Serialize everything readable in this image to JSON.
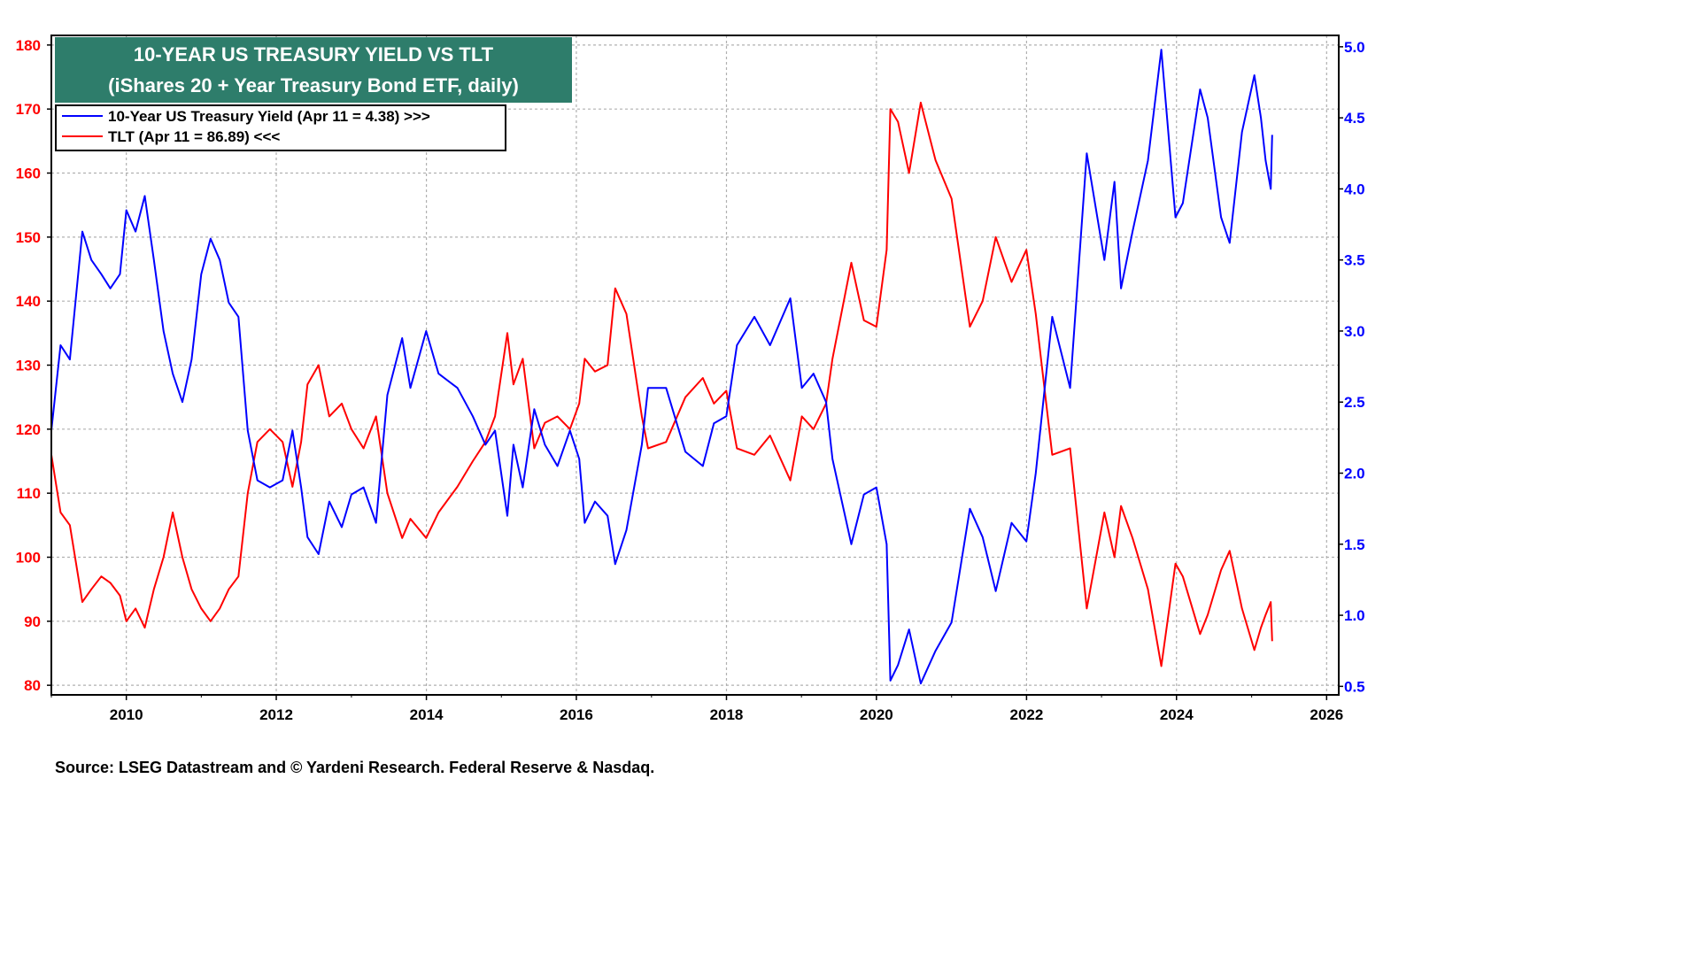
{
  "colors": {
    "tlt_series": "#ff0000",
    "yield_series": "#0000ff",
    "title_box": "#2e7d6b",
    "title_text": "#ffffff",
    "grid": "#b0b0b0",
    "frame": "#000000"
  },
  "chart_data": {
    "type": "line",
    "title": "10-YEAR US TREASURY YIELD VS TLT",
    "subtitle": "(iShares 20 + Year Treasury Bond ETF, daily)",
    "source": "Source: LSEG Datastream and © Yardeni Research. Federal Reserve & Nasdaq.",
    "grid": true,
    "legend_position": "top-left",
    "x_axis": {
      "type": "date",
      "range": [
        "2009-01-01",
        "2026-03-01"
      ],
      "tick_labels": [
        "2010",
        "2012",
        "2014",
        "2016",
        "2018",
        "2020",
        "2022",
        "2024",
        "2026"
      ]
    },
    "y_left": {
      "range": [
        78.5,
        181.5
      ],
      "ticks": [
        80,
        90,
        100,
        110,
        120,
        130,
        140,
        150,
        160,
        170,
        180
      ],
      "tick_labels": [
        "80",
        "90",
        "100",
        "110",
        "120",
        "130",
        "140",
        "150",
        "160",
        "170",
        "180"
      ]
    },
    "y_right": {
      "range": [
        0.44,
        5.08
      ],
      "ticks": [
        0.5,
        1.0,
        1.5,
        2.0,
        2.5,
        3.0,
        3.5,
        4.0,
        4.5,
        5.0
      ],
      "tick_labels": [
        "0.5",
        "1.0",
        "1.5",
        "2.0",
        "2.5",
        "3.0",
        "3.5",
        "4.0",
        "4.5",
        "5.0"
      ]
    },
    "series": [
      {
        "name": "10-Year US Treasury Yield (Apr 11 = 4.38) >>>",
        "axis": "right",
        "color": "#0000ff",
        "points": [
          [
            "2009-01-01",
            2.3
          ],
          [
            "2009-02-15",
            2.9
          ],
          [
            "2009-04-01",
            2.8
          ],
          [
            "2009-06-01",
            3.7
          ],
          [
            "2009-07-15",
            3.5
          ],
          [
            "2009-09-01",
            3.4
          ],
          [
            "2009-10-15",
            3.3
          ],
          [
            "2009-12-01",
            3.4
          ],
          [
            "2010-01-01",
            3.85
          ],
          [
            "2010-02-15",
            3.7
          ],
          [
            "2010-04-01",
            3.95
          ],
          [
            "2010-05-15",
            3.5
          ],
          [
            "2010-07-01",
            3.0
          ],
          [
            "2010-08-15",
            2.7
          ],
          [
            "2010-10-01",
            2.5
          ],
          [
            "2010-11-15",
            2.8
          ],
          [
            "2011-01-01",
            3.4
          ],
          [
            "2011-02-15",
            3.65
          ],
          [
            "2011-04-01",
            3.5
          ],
          [
            "2011-05-15",
            3.2
          ],
          [
            "2011-07-01",
            3.1
          ],
          [
            "2011-08-15",
            2.3
          ],
          [
            "2011-10-01",
            1.95
          ],
          [
            "2011-12-01",
            1.9
          ],
          [
            "2012-02-01",
            1.95
          ],
          [
            "2012-03-20",
            2.3
          ],
          [
            "2012-05-01",
            1.9
          ],
          [
            "2012-06-01",
            1.55
          ],
          [
            "2012-07-25",
            1.43
          ],
          [
            "2012-09-15",
            1.8
          ],
          [
            "2012-11-15",
            1.62
          ],
          [
            "2013-01-01",
            1.85
          ],
          [
            "2013-03-01",
            1.9
          ],
          [
            "2013-05-01",
            1.65
          ],
          [
            "2013-06-25",
            2.55
          ],
          [
            "2013-09-05",
            2.95
          ],
          [
            "2013-10-15",
            2.6
          ],
          [
            "2013-12-31",
            3.0
          ],
          [
            "2014-03-01",
            2.7
          ],
          [
            "2014-06-01",
            2.6
          ],
          [
            "2014-08-15",
            2.4
          ],
          [
            "2014-10-15",
            2.2
          ],
          [
            "2014-12-01",
            2.3
          ],
          [
            "2015-01-30",
            1.7
          ],
          [
            "2015-03-01",
            2.2
          ],
          [
            "2015-04-15",
            1.9
          ],
          [
            "2015-06-10",
            2.45
          ],
          [
            "2015-08-01",
            2.2
          ],
          [
            "2015-10-01",
            2.05
          ],
          [
            "2015-12-01",
            2.3
          ],
          [
            "2016-01-15",
            2.1
          ],
          [
            "2016-02-11",
            1.65
          ],
          [
            "2016-04-01",
            1.8
          ],
          [
            "2016-06-01",
            1.7
          ],
          [
            "2016-07-08",
            1.36
          ],
          [
            "2016-09-01",
            1.6
          ],
          [
            "2016-11-15",
            2.2
          ],
          [
            "2016-12-15",
            2.6
          ],
          [
            "2017-03-13",
            2.6
          ],
          [
            "2017-06-15",
            2.15
          ],
          [
            "2017-09-08",
            2.05
          ],
          [
            "2017-11-01",
            2.35
          ],
          [
            "2017-12-31",
            2.4
          ],
          [
            "2018-02-21",
            2.9
          ],
          [
            "2018-05-17",
            3.1
          ],
          [
            "2018-08-01",
            2.9
          ],
          [
            "2018-11-08",
            3.23
          ],
          [
            "2019-01-03",
            2.6
          ],
          [
            "2019-03-01",
            2.7
          ],
          [
            "2019-05-01",
            2.5
          ],
          [
            "2019-06-01",
            2.1
          ],
          [
            "2019-09-01",
            1.5
          ],
          [
            "2019-11-01",
            1.85
          ],
          [
            "2020-01-01",
            1.9
          ],
          [
            "2020-02-20",
            1.5
          ],
          [
            "2020-03-09",
            0.54
          ],
          [
            "2020-04-15",
            0.65
          ],
          [
            "2020-06-08",
            0.9
          ],
          [
            "2020-08-04",
            0.52
          ],
          [
            "2020-10-15",
            0.75
          ],
          [
            "2021-01-01",
            0.95
          ],
          [
            "2021-03-31",
            1.75
          ],
          [
            "2021-06-01",
            1.55
          ],
          [
            "2021-08-04",
            1.17
          ],
          [
            "2021-10-20",
            1.65
          ],
          [
            "2021-12-31",
            1.52
          ],
          [
            "2022-02-15",
            2.0
          ],
          [
            "2022-05-06",
            3.1
          ],
          [
            "2022-08-01",
            2.6
          ],
          [
            "2022-10-21",
            4.25
          ],
          [
            "2023-01-15",
            3.5
          ],
          [
            "2023-03-05",
            4.05
          ],
          [
            "2023-04-06",
            3.3
          ],
          [
            "2023-06-01",
            3.7
          ],
          [
            "2023-08-15",
            4.2
          ],
          [
            "2023-10-19",
            4.98
          ],
          [
            "2023-12-27",
            3.8
          ],
          [
            "2024-02-01",
            3.9
          ],
          [
            "2024-04-25",
            4.7
          ],
          [
            "2024-06-01",
            4.5
          ],
          [
            "2024-08-05",
            3.8
          ],
          [
            "2024-09-16",
            3.62
          ],
          [
            "2024-11-15",
            4.4
          ],
          [
            "2025-01-14",
            4.8
          ],
          [
            "2025-02-15",
            4.5
          ],
          [
            "2025-03-10",
            4.2
          ],
          [
            "2025-04-04",
            4.0
          ],
          [
            "2025-04-11",
            4.38
          ]
        ]
      },
      {
        "name": "TLT (Apr 11 = 86.89) <<<",
        "axis": "left",
        "color": "#ff0000",
        "points": [
          [
            "2009-01-01",
            116
          ],
          [
            "2009-02-15",
            107
          ],
          [
            "2009-04-01",
            105
          ],
          [
            "2009-06-01",
            93
          ],
          [
            "2009-07-15",
            95
          ],
          [
            "2009-09-01",
            97
          ],
          [
            "2009-10-15",
            96
          ],
          [
            "2009-12-01",
            94
          ],
          [
            "2010-01-01",
            90
          ],
          [
            "2010-02-15",
            92
          ],
          [
            "2010-04-01",
            89
          ],
          [
            "2010-05-15",
            95
          ],
          [
            "2010-07-01",
            100
          ],
          [
            "2010-08-15",
            107
          ],
          [
            "2010-10-01",
            100
          ],
          [
            "2010-11-15",
            95
          ],
          [
            "2011-01-01",
            92
          ],
          [
            "2011-02-15",
            90
          ],
          [
            "2011-04-01",
            92
          ],
          [
            "2011-05-15",
            95
          ],
          [
            "2011-07-01",
            97
          ],
          [
            "2011-08-15",
            110
          ],
          [
            "2011-10-01",
            118
          ],
          [
            "2011-12-01",
            120
          ],
          [
            "2012-02-01",
            118
          ],
          [
            "2012-03-20",
            111
          ],
          [
            "2012-05-01",
            118
          ],
          [
            "2012-06-01",
            127
          ],
          [
            "2012-07-25",
            130
          ],
          [
            "2012-09-15",
            122
          ],
          [
            "2012-11-15",
            124
          ],
          [
            "2013-01-01",
            120
          ],
          [
            "2013-03-01",
            117
          ],
          [
            "2013-05-01",
            122
          ],
          [
            "2013-06-25",
            110
          ],
          [
            "2013-09-05",
            103
          ],
          [
            "2013-10-15",
            106
          ],
          [
            "2013-12-31",
            103
          ],
          [
            "2014-03-01",
            107
          ],
          [
            "2014-06-01",
            111
          ],
          [
            "2014-08-15",
            115
          ],
          [
            "2014-10-15",
            118
          ],
          [
            "2014-12-01",
            122
          ],
          [
            "2015-01-30",
            135
          ],
          [
            "2015-03-01",
            127
          ],
          [
            "2015-04-15",
            131
          ],
          [
            "2015-06-10",
            117
          ],
          [
            "2015-08-01",
            121
          ],
          [
            "2015-10-01",
            122
          ],
          [
            "2015-12-01",
            120
          ],
          [
            "2016-01-15",
            124
          ],
          [
            "2016-02-11",
            131
          ],
          [
            "2016-04-01",
            129
          ],
          [
            "2016-06-01",
            130
          ],
          [
            "2016-07-08",
            142
          ],
          [
            "2016-09-01",
            138
          ],
          [
            "2016-11-15",
            122
          ],
          [
            "2016-12-15",
            117
          ],
          [
            "2017-03-13",
            118
          ],
          [
            "2017-06-15",
            125
          ],
          [
            "2017-09-08",
            128
          ],
          [
            "2017-11-01",
            124
          ],
          [
            "2017-12-31",
            126
          ],
          [
            "2018-02-21",
            117
          ],
          [
            "2018-05-17",
            116
          ],
          [
            "2018-08-01",
            119
          ],
          [
            "2018-11-08",
            112
          ],
          [
            "2019-01-03",
            122
          ],
          [
            "2019-03-01",
            120
          ],
          [
            "2019-05-01",
            124
          ],
          [
            "2019-06-01",
            131
          ],
          [
            "2019-09-01",
            146
          ],
          [
            "2019-11-01",
            137
          ],
          [
            "2020-01-01",
            136
          ],
          [
            "2020-02-20",
            148
          ],
          [
            "2020-03-09",
            170
          ],
          [
            "2020-04-15",
            168
          ],
          [
            "2020-06-08",
            160
          ],
          [
            "2020-08-04",
            171
          ],
          [
            "2020-10-15",
            162
          ],
          [
            "2021-01-01",
            156
          ],
          [
            "2021-03-31",
            136
          ],
          [
            "2021-06-01",
            140
          ],
          [
            "2021-08-04",
            150
          ],
          [
            "2021-10-20",
            143
          ],
          [
            "2021-12-31",
            148
          ],
          [
            "2022-02-15",
            138
          ],
          [
            "2022-05-06",
            116
          ],
          [
            "2022-08-01",
            117
          ],
          [
            "2022-10-21",
            92
          ],
          [
            "2023-01-15",
            107
          ],
          [
            "2023-03-05",
            100
          ],
          [
            "2023-04-06",
            108
          ],
          [
            "2023-06-01",
            103
          ],
          [
            "2023-08-15",
            95
          ],
          [
            "2023-10-19",
            83
          ],
          [
            "2023-12-27",
            99
          ],
          [
            "2024-02-01",
            97
          ],
          [
            "2024-04-25",
            88
          ],
          [
            "2024-06-01",
            91
          ],
          [
            "2024-08-05",
            98
          ],
          [
            "2024-09-16",
            101
          ],
          [
            "2024-11-15",
            92
          ],
          [
            "2025-01-14",
            85.5
          ],
          [
            "2025-02-15",
            89
          ],
          [
            "2025-03-10",
            91
          ],
          [
            "2025-04-04",
            93
          ],
          [
            "2025-04-11",
            86.89
          ]
        ]
      }
    ]
  }
}
